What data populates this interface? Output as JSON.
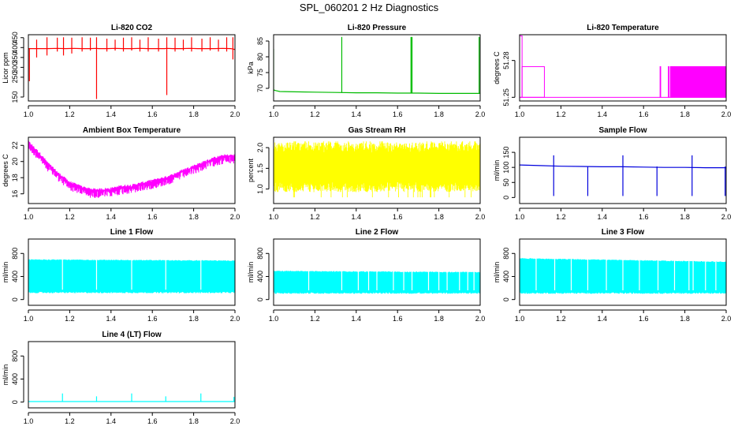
{
  "figure": {
    "title": "SPL_060201  2 Hz Diagnostics"
  },
  "chart_data": [
    {
      "id": "co2",
      "type": "line",
      "title": "Li-820 CO2",
      "ylabel": "Licor ppm",
      "color": "#ff0000",
      "xlim": [
        1.0,
        2.0
      ],
      "ylim": [
        130,
        465
      ],
      "xticks": [
        1.0,
        1.2,
        1.4,
        1.6,
        1.8,
        2.0
      ],
      "xtick_labels": [
        "1.0",
        "1.2",
        "1.4",
        "1.6",
        "1.8",
        "2.0"
      ],
      "yticks": [
        150,
        250,
        300,
        350,
        400,
        450
      ],
      "ytick_labels": [
        "150",
        "250",
        "300",
        "350",
        "400",
        "450"
      ],
      "series": [
        {
          "name": "CO2",
          "x": [
            1.0,
            1.01,
            1.05,
            1.09,
            1.14,
            1.18,
            1.22,
            1.26,
            1.3,
            1.33,
            1.34,
            1.38,
            1.42,
            1.46,
            1.5,
            1.54,
            1.58,
            1.62,
            1.66,
            1.67,
            1.7,
            1.74,
            1.78,
            1.82,
            1.86,
            1.9,
            1.94,
            1.98,
            2.0
          ],
          "y": [
            395,
            395,
            395,
            395,
            396,
            395,
            396,
            395,
            395,
            396,
            395,
            395,
            396,
            395,
            395,
            396,
            395,
            395,
            395,
            396,
            395,
            395,
            396,
            395,
            395,
            395,
            396,
            395,
            390
          ]
        }
      ],
      "spikes": [
        {
          "x": 1.005,
          "lo": 230,
          "hi": 395
        },
        {
          "x": 1.04,
          "lo": 350,
          "hi": 440
        },
        {
          "x": 1.09,
          "lo": 360,
          "hi": 452
        },
        {
          "x": 1.14,
          "lo": 380,
          "hi": 450
        },
        {
          "x": 1.17,
          "lo": 360,
          "hi": 452
        },
        {
          "x": 1.21,
          "lo": 370,
          "hi": 450
        },
        {
          "x": 1.26,
          "lo": 380,
          "hi": 452
        },
        {
          "x": 1.3,
          "lo": 385,
          "hi": 450
        },
        {
          "x": 1.33,
          "lo": 140,
          "hi": 452
        },
        {
          "x": 1.38,
          "lo": 380,
          "hi": 445
        },
        {
          "x": 1.42,
          "lo": 385,
          "hi": 440
        },
        {
          "x": 1.46,
          "lo": 380,
          "hi": 450
        },
        {
          "x": 1.5,
          "lo": 385,
          "hi": 452
        },
        {
          "x": 1.54,
          "lo": 380,
          "hi": 440
        },
        {
          "x": 1.58,
          "lo": 380,
          "hi": 452
        },
        {
          "x": 1.63,
          "lo": 380,
          "hi": 445
        },
        {
          "x": 1.67,
          "lo": 160,
          "hi": 452
        },
        {
          "x": 1.71,
          "lo": 380,
          "hi": 450
        },
        {
          "x": 1.75,
          "lo": 385,
          "hi": 440
        },
        {
          "x": 1.79,
          "lo": 380,
          "hi": 452
        },
        {
          "x": 1.84,
          "lo": 380,
          "hi": 445
        },
        {
          "x": 1.88,
          "lo": 385,
          "hi": 452
        },
        {
          "x": 1.92,
          "lo": 380,
          "hi": 440
        },
        {
          "x": 1.96,
          "lo": 380,
          "hi": 452
        },
        {
          "x": 1.99,
          "lo": 340,
          "hi": 452
        }
      ]
    },
    {
      "id": "pressure",
      "type": "line",
      "title": "Li-820 Pressure",
      "ylabel": "kPa",
      "color": "#00bb00",
      "xlim": [
        1.0,
        2.0
      ],
      "ylim": [
        66,
        87
      ],
      "xticks": [
        1.0,
        1.2,
        1.4,
        1.6,
        1.8,
        2.0
      ],
      "xtick_labels": [
        "1.0",
        "1.2",
        "1.4",
        "1.6",
        "1.8",
        "2.0"
      ],
      "yticks": [
        70,
        75,
        80,
        85
      ],
      "ytick_labels": [
        "70",
        "75",
        "80",
        "85"
      ],
      "series": [
        {
          "name": "Pressure",
          "x": [
            1.0,
            1.01,
            1.03,
            1.1,
            1.2,
            1.3,
            1.4,
            1.5,
            1.6,
            1.7,
            1.8,
            1.9,
            2.0
          ],
          "y": [
            69.5,
            69.3,
            69.0,
            68.9,
            68.8,
            68.7,
            68.6,
            68.6,
            68.5,
            68.5,
            68.4,
            68.4,
            68.4
          ]
        }
      ],
      "spikes": [
        {
          "x": 1.0,
          "lo": 68.8,
          "hi": 82.5
        },
        {
          "x": 1.33,
          "lo": 68.6,
          "hi": 86.3
        },
        {
          "x": 1.665,
          "lo": 68.4,
          "hi": 86.3
        },
        {
          "x": 1.67,
          "lo": 68.4,
          "hi": 86.3
        },
        {
          "x": 1.995,
          "lo": 68.3,
          "hi": 86.3
        }
      ]
    },
    {
      "id": "licor-temp",
      "type": "step",
      "title": "Li-820 Temperature",
      "ylabel": "degrees C",
      "color": "#ff00ff",
      "xlim": [
        1.0,
        2.0
      ],
      "ylim": [
        51.247,
        51.301
      ],
      "xticks": [
        1.0,
        1.2,
        1.4,
        1.6,
        1.8,
        2.0
      ],
      "xtick_labels": [
        "1.0",
        "1.2",
        "1.4",
        "1.6",
        "1.8",
        "2.0"
      ],
      "yticks": [
        51.25,
        51.28
      ],
      "ytick_labels": [
        "51.25",
        "51.28"
      ],
      "bands": [
        {
          "x0": 1.0,
          "x1": 1.012,
          "lo": 51.25,
          "hi": 51.3
        },
        {
          "x0": 1.012,
          "x1": 1.12,
          "lo": 51.25,
          "hi": 51.275
        },
        {
          "x0": 1.68,
          "x1": 1.682,
          "lo": 51.25,
          "hi": 51.275
        },
        {
          "x0": 1.72,
          "x1": 1.722,
          "lo": 51.25,
          "hi": 51.275
        },
        {
          "x0": 1.73,
          "x1": 1.732,
          "lo": 51.25,
          "hi": 51.275
        },
        {
          "x0": 1.735,
          "x1": 1.737,
          "lo": 51.25,
          "hi": 51.275
        },
        {
          "x0": 1.74,
          "x1": 1.742,
          "lo": 51.25,
          "hi": 51.275
        },
        {
          "x0": 1.745,
          "x1": 1.747,
          "lo": 51.25,
          "hi": 51.275
        },
        {
          "x0": 1.75,
          "x1": 2.0,
          "lo": 51.25,
          "hi": 51.275
        }
      ],
      "baseline": 51.25
    },
    {
      "id": "box-temp",
      "type": "line",
      "title": "Ambient Box Temperature",
      "ylabel": "degrees C",
      "color": "#ff00ff",
      "xlim": [
        1.0,
        2.0
      ],
      "ylim": [
        14.8,
        23.0
      ],
      "xticks": [
        1.0,
        1.2,
        1.4,
        1.6,
        1.8,
        2.0
      ],
      "xtick_labels": [
        "1.0",
        "1.2",
        "1.4",
        "1.6",
        "1.8",
        "2.0"
      ],
      "yticks": [
        16,
        18,
        20,
        22
      ],
      "ytick_labels": [
        "16",
        "18",
        "20",
        "22"
      ],
      "series": [
        {
          "name": "Temp",
          "x": [
            1.0,
            1.05,
            1.1,
            1.15,
            1.2,
            1.25,
            1.3,
            1.35,
            1.4,
            1.45,
            1.5,
            1.55,
            1.6,
            1.65,
            1.7,
            1.75,
            1.8,
            1.85,
            1.9,
            1.95,
            2.0
          ],
          "y": [
            22.3,
            21.0,
            19.5,
            18.3,
            17.3,
            16.8,
            16.4,
            16.4,
            16.5,
            16.8,
            16.9,
            17.2,
            17.5,
            17.8,
            18.2,
            18.8,
            19.3,
            19.8,
            20.3,
            20.6,
            20.6
          ]
        }
      ],
      "noise_amp": 0.9
    },
    {
      "id": "rh",
      "type": "band",
      "title": "Gas Stream RH",
      "ylabel": "percent",
      "color": "#ffff00",
      "xlim": [
        1.0,
        2.0
      ],
      "ylim": [
        0.65,
        2.25
      ],
      "xticks": [
        1.0,
        1.2,
        1.4,
        1.6,
        1.8,
        2.0
      ],
      "xtick_labels": [
        "1.0",
        "1.2",
        "1.4",
        "1.6",
        "1.8",
        "2.0"
      ],
      "yticks": [
        1.0,
        1.5,
        2.0
      ],
      "ytick_labels": [
        "1.0",
        "1.5",
        "2.0"
      ],
      "band": {
        "lo": 1.0,
        "hi": 2.05,
        "min": 0.8,
        "max": 2.15
      }
    },
    {
      "id": "sample-flow",
      "type": "line",
      "title": "Sample Flow",
      "ylabel": "ml/min",
      "color": "#0000dd",
      "xlim": [
        1.0,
        2.0
      ],
      "ylim": [
        -20,
        200
      ],
      "xticks": [
        1.0,
        1.2,
        1.4,
        1.6,
        1.8,
        2.0
      ],
      "xtick_labels": [
        "1.0",
        "1.2",
        "1.4",
        "1.6",
        "1.8",
        "2.0"
      ],
      "yticks": [
        0,
        50,
        100,
        150
      ],
      "ytick_labels": [
        "0",
        "50",
        "100",
        "150"
      ],
      "series": [
        {
          "name": "Flow",
          "x": [
            1.0,
            1.1,
            1.2,
            1.3,
            1.4,
            1.5,
            1.6,
            1.7,
            1.8,
            1.9,
            2.0
          ],
          "y": [
            108,
            106,
            104,
            103,
            102,
            102,
            101,
            100,
            100,
            99,
            99
          ]
        }
      ],
      "spikes": [
        {
          "x": 1.165,
          "lo": 5,
          "hi": 140
        },
        {
          "x": 1.33,
          "lo": 5,
          "hi": 103
        },
        {
          "x": 1.5,
          "lo": 5,
          "hi": 140
        },
        {
          "x": 1.665,
          "lo": 5,
          "hi": 103
        },
        {
          "x": 1.835,
          "lo": 5,
          "hi": 140
        },
        {
          "x": 1.995,
          "lo": 5,
          "hi": 103
        }
      ]
    },
    {
      "id": "line1",
      "type": "band",
      "title": "Line 1 Flow",
      "ylabel": "ml/min",
      "color": "#00ffff",
      "xlim": [
        1.0,
        2.0
      ],
      "ylim": [
        -100,
        1050
      ],
      "xticks": [
        1.0,
        1.2,
        1.4,
        1.6,
        1.8,
        2.0
      ],
      "xtick_labels": [
        "1.0",
        "1.2",
        "1.4",
        "1.6",
        "1.8",
        "2.0"
      ],
      "yticks": [
        0,
        400,
        800
      ],
      "ytick_labels": [
        "0",
        "400",
        "800"
      ],
      "band": {
        "lo": 110,
        "hi": 700,
        "hi_end": 680
      },
      "gaps": [
        1.165,
        1.33,
        1.5,
        1.665,
        1.835
      ]
    },
    {
      "id": "line2",
      "type": "band",
      "title": "Line 2 Flow",
      "ylabel": "ml/min",
      "color": "#00ffff",
      "xlim": [
        1.0,
        2.0
      ],
      "ylim": [
        -100,
        1050
      ],
      "xticks": [
        1.0,
        1.2,
        1.4,
        1.6,
        1.8,
        2.0
      ],
      "xtick_labels": [
        "1.0",
        "1.2",
        "1.4",
        "1.6",
        "1.8",
        "2.0"
      ],
      "yticks": [
        0,
        400,
        800
      ],
      "ytick_labels": [
        "0",
        "400",
        "800"
      ],
      "band": {
        "lo": 100,
        "hi": 500,
        "hi_end": 480
      },
      "gaps": [
        1.17,
        1.33,
        1.41,
        1.46,
        1.5,
        1.58,
        1.63,
        1.67,
        1.75,
        1.8,
        1.84,
        1.9,
        1.94,
        1.97
      ]
    },
    {
      "id": "line3",
      "type": "band",
      "title": "Line 3 Flow",
      "ylabel": "ml/min",
      "color": "#00ffff",
      "xlim": [
        1.0,
        2.0
      ],
      "ylim": [
        -100,
        1050
      ],
      "xticks": [
        1.0,
        1.2,
        1.4,
        1.6,
        1.8,
        2.0
      ],
      "xtick_labels": [
        "1.0",
        "1.2",
        "1.4",
        "1.6",
        "1.8",
        "2.0"
      ],
      "yticks": [
        0,
        400,
        800
      ],
      "ytick_labels": [
        "0",
        "400",
        "800"
      ],
      "band": {
        "lo": 100,
        "hi": 720,
        "hi_end": 660
      },
      "gaps": [
        1.08,
        1.17,
        1.25,
        1.33,
        1.42,
        1.5,
        1.58,
        1.67,
        1.75,
        1.82,
        1.84,
        1.9,
        1.95
      ]
    },
    {
      "id": "line4",
      "type": "line",
      "title": "Line 4 (LT) Flow",
      "ylabel": "ml/min",
      "color": "#00ffff",
      "xlim": [
        1.0,
        2.0
      ],
      "ylim": [
        -100,
        1050
      ],
      "xticks": [
        1.0,
        1.2,
        1.4,
        1.6,
        1.8,
        2.0
      ],
      "xtick_labels": [
        "1.0",
        "1.2",
        "1.4",
        "1.6",
        "1.8",
        "2.0"
      ],
      "yticks": [
        0,
        400,
        800
      ],
      "ytick_labels": [
        "0",
        "400",
        "800"
      ],
      "series": [
        {
          "name": "Flow",
          "x": [
            1.0,
            2.0
          ],
          "y": [
            10,
            10
          ]
        }
      ],
      "spikes": [
        {
          "x": 1.165,
          "lo": 5,
          "hi": 150
        },
        {
          "x": 1.33,
          "lo": 5,
          "hi": 100
        },
        {
          "x": 1.5,
          "lo": 5,
          "hi": 150
        },
        {
          "x": 1.665,
          "lo": 5,
          "hi": 100
        },
        {
          "x": 1.835,
          "lo": 5,
          "hi": 150
        },
        {
          "x": 1.995,
          "lo": 5,
          "hi": 90
        }
      ]
    }
  ]
}
